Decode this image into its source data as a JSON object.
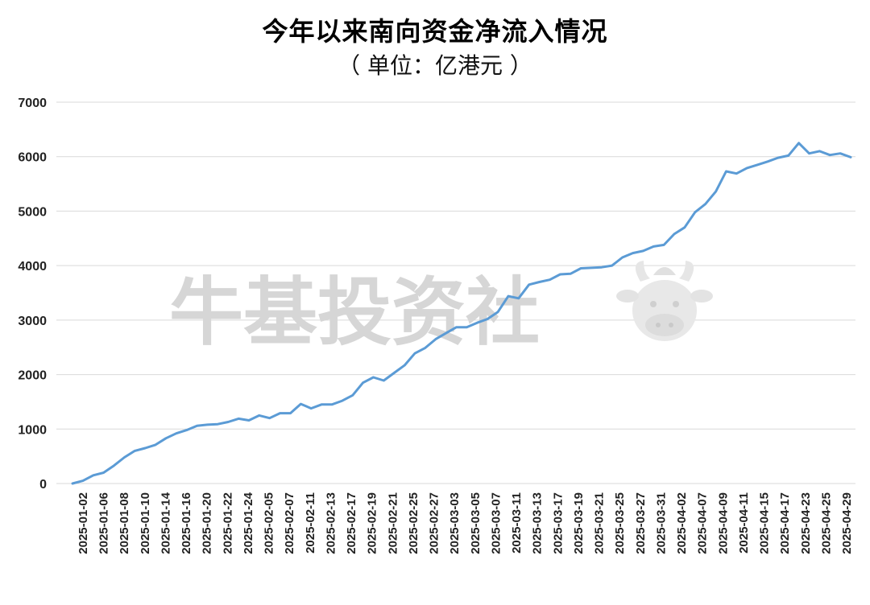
{
  "watermark": {
    "text": "牛基投资社",
    "logo": "bull-mascot-icon"
  },
  "chart_data": {
    "type": "line",
    "title": "今年以来南向资金净流入情况",
    "subtitle": "（ 单位：亿港元 ）",
    "ylim": [
      0,
      7000
    ],
    "yticks": [
      0,
      1000,
      2000,
      3000,
      4000,
      5000,
      6000,
      7000
    ],
    "grid": true,
    "line_color": "#5b9bd5",
    "xtick_labels": [
      "2025-01-02",
      "2025-01-06",
      "2025-01-08",
      "2025-01-10",
      "2025-01-14",
      "2025-01-16",
      "2025-01-20",
      "2025-01-22",
      "2025-01-24",
      "2025-02-05",
      "2025-02-07",
      "2025-02-11",
      "2025-02-13",
      "2025-02-17",
      "2025-02-19",
      "2025-02-21",
      "2025-02-25",
      "2025-02-27",
      "2025-03-03",
      "2025-03-05",
      "2025-03-07",
      "2025-03-11",
      "2025-03-13",
      "2025-03-17",
      "2025-03-19",
      "2025-03-21",
      "2025-03-25",
      "2025-03-27",
      "2025-03-31",
      "2025-04-02",
      "2025-04-07",
      "2025-04-09",
      "2025-04-11",
      "2025-04-15",
      "2025-04-17",
      "2025-04-23",
      "2025-04-25",
      "2025-04-29"
    ],
    "series": [
      {
        "values": [
          0,
          50,
          150,
          200,
          330,
          480,
          600,
          650,
          710,
          830,
          920,
          980,
          1060,
          1080,
          1090,
          1130,
          1190,
          1160,
          1250,
          1200,
          1290,
          1290,
          1460,
          1380,
          1450,
          1450,
          1520,
          1620,
          1850,
          1950,
          1890,
          2030,
          2170,
          2390,
          2490,
          2650,
          2760,
          2870,
          2870,
          2950,
          3020,
          3150,
          3440,
          3400,
          3650,
          3700,
          3740,
          3840,
          3850,
          3950,
          3960,
          3970,
          4000,
          4150,
          4230,
          4270,
          4350,
          4380,
          4580,
          4700,
          4980,
          5130,
          5360,
          5730,
          5690,
          5790,
          5850,
          5910,
          5980,
          6020,
          6250,
          6060,
          6100,
          6030,
          6060,
          5990
        ]
      }
    ]
  }
}
